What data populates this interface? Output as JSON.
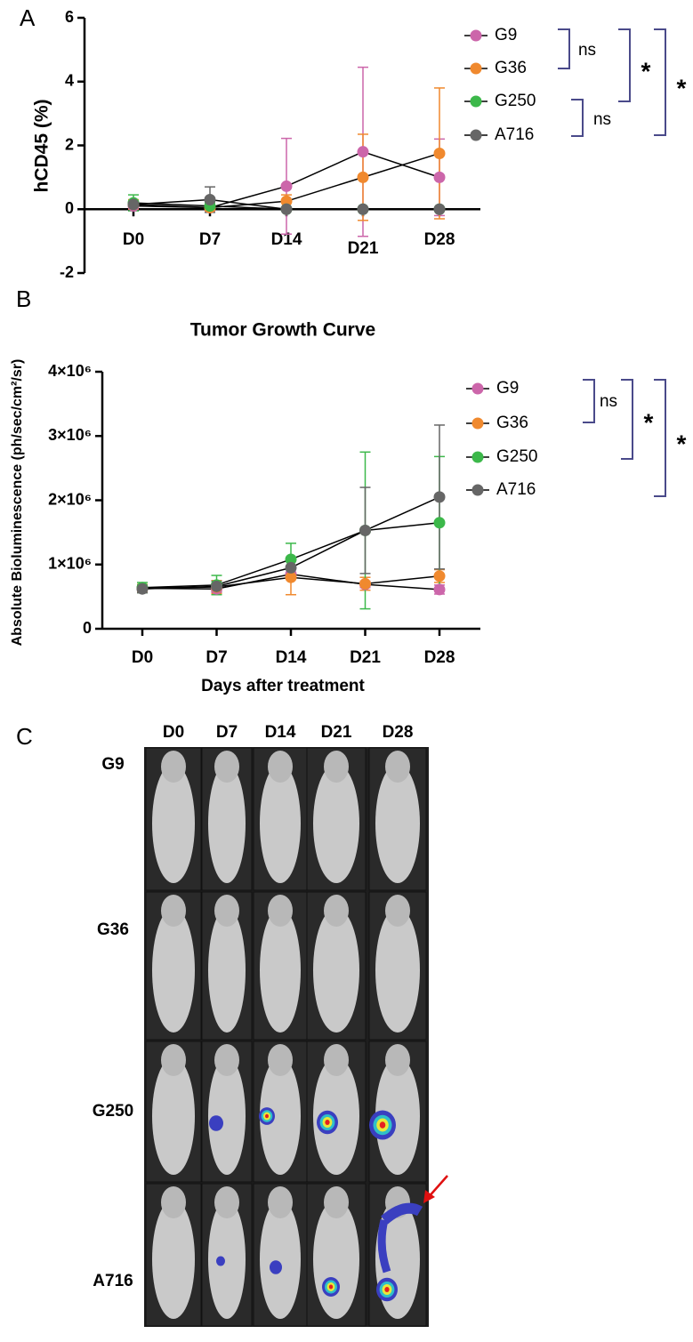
{
  "chart_data": [
    {
      "type": "line",
      "panel": "A",
      "y_label": "hCD45 (%)",
      "categories": [
        "D0",
        "D7",
        "D14",
        "D21",
        "D28"
      ],
      "ylim": [
        -2,
        6
      ],
      "yticks": [
        -2,
        0,
        2,
        4,
        6
      ],
      "series": [
        {
          "name": "G9",
          "color": "#cc66aa",
          "values": [
            0.1,
            0.05,
            0.72,
            1.8,
            1.0
          ],
          "errors": [
            0.1,
            0.1,
            1.5,
            2.65,
            1.2
          ]
        },
        {
          "name": "G36",
          "color": "#f0892e",
          "values": [
            0.15,
            0.05,
            0.25,
            1.0,
            1.75
          ],
          "errors": [
            0.15,
            0.1,
            0.2,
            1.35,
            2.05
          ]
        },
        {
          "name": "G250",
          "color": "#3cb84a",
          "values": [
            0.2,
            0.1,
            0,
            0,
            0
          ],
          "errors": [
            0.25,
            0.1,
            0.05,
            0.05,
            0.05
          ]
        },
        {
          "name": "A716",
          "color": "#666666",
          "values": [
            0.15,
            0.3,
            0,
            0,
            0
          ],
          "errors": [
            0.1,
            0.4,
            0.05,
            0.05,
            0.05
          ]
        }
      ],
      "significance": [
        "ns",
        "ns",
        "*",
        "*"
      ]
    },
    {
      "type": "line",
      "panel": "B",
      "title": "Tumor Growth Curve",
      "x_label": "Days after treatment",
      "y_label": "Absolute Bioluminescence (ph/sec/cm²/sr)",
      "categories": [
        "D0",
        "D7",
        "D14",
        "D21",
        "D28"
      ],
      "ylim": [
        0,
        4000000
      ],
      "yticks": [
        0,
        {
          "value": 1000000,
          "label": "1×10⁶"
        },
        {
          "value": 2000000,
          "label": "2×10⁶"
        },
        {
          "value": 3000000,
          "label": "3×10⁶"
        },
        {
          "value": 4000000,
          "label": "4×10⁶"
        }
      ],
      "series": [
        {
          "name": "G9",
          "color": "#cc66aa",
          "values": [
            630000,
            620000,
            850000,
            690000,
            610000
          ],
          "errors": [
            50000,
            50000,
            80000,
            50000,
            70000
          ]
        },
        {
          "name": "G36",
          "color": "#f0892e",
          "values": [
            630000,
            650000,
            800000,
            700000,
            820000
          ],
          "errors": [
            60000,
            100000,
            270000,
            100000,
            100000
          ]
        },
        {
          "name": "G250",
          "color": "#3cb84a",
          "values": [
            640000,
            680000,
            1080000,
            1530000,
            1650000
          ],
          "errors": [
            80000,
            150000,
            250000,
            1220000,
            1030000
          ]
        },
        {
          "name": "A716",
          "color": "#666666",
          "values": [
            620000,
            660000,
            950000,
            1530000,
            2050000
          ],
          "errors": [
            60000,
            80000,
            150000,
            670000,
            1120000
          ]
        }
      ],
      "significance": [
        "ns",
        "*",
        "*"
      ]
    }
  ],
  "panel_c": {
    "label": "C",
    "columns": [
      "D0",
      "D7",
      "D14",
      "D21",
      "D28"
    ],
    "rows": [
      {
        "name": "G9",
        "color": "#e6007e"
      },
      {
        "name": "G36",
        "color": "#e8413a"
      },
      {
        "name": "G250",
        "color": "#1a9e3a"
      },
      {
        "name": "A716",
        "color": "#444444"
      }
    ]
  }
}
